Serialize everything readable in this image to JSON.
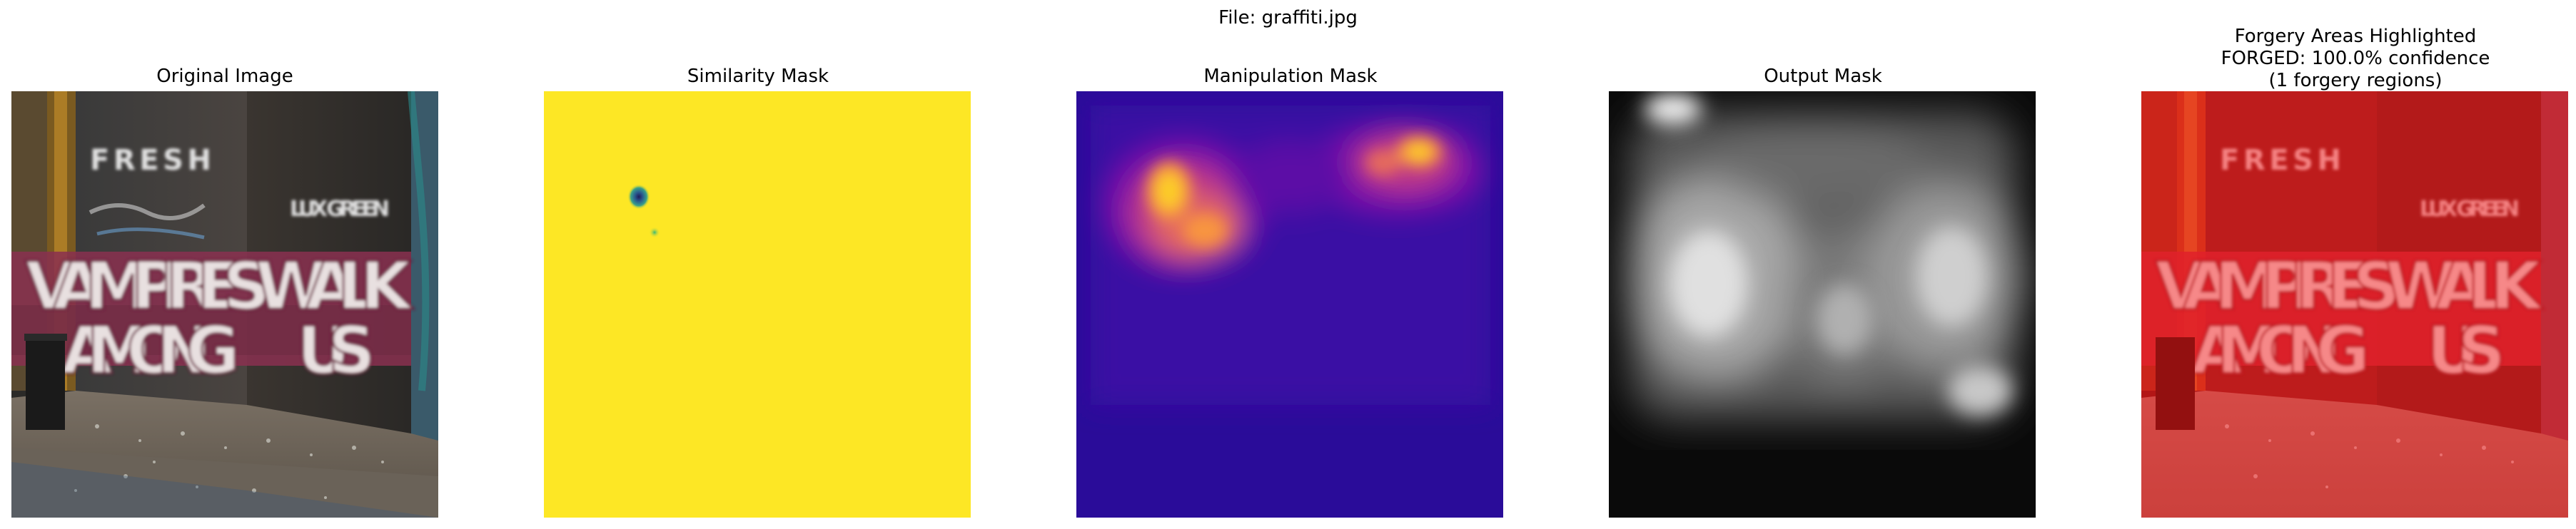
{
  "figure": {
    "suptitle": "File: graffiti.jpg"
  },
  "panels": [
    {
      "title": "Original Image"
    },
    {
      "title": "Similarity Mask"
    },
    {
      "title": "Manipulation Mask"
    },
    {
      "title": "Output Mask"
    },
    {
      "title_lines": [
        "Forgery Areas Highlighted",
        "FORGED: 100.0% confidence",
        "(1 forgery regions)"
      ]
    }
  ],
  "graffiti": {
    "line1": "VAMPIRES WALK",
    "line2": "AMONG",
    "line3": "US",
    "tag_top": "FRESH",
    "tag_right": "LUX GREEN"
  },
  "colors": {
    "similarity_bg": "#fde725",
    "similarity_spot": "#2a5a8f",
    "manipulation_bg": "#2a0c99",
    "manipulation_hot": "#fcce25",
    "output_bg": "#0a0a0a",
    "forgery_tint": "#ff1010"
  }
}
